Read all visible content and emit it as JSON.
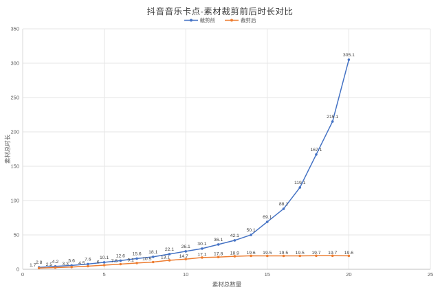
{
  "title": "抖音音乐卡点-素材裁剪前后时长对比",
  "colors": {
    "series_before": "#4472C4",
    "series_after": "#ED7D31",
    "gridline": "#E6E6E6",
    "axis_line": "#BFBFBF",
    "tick_text": "#595959",
    "label_text": "#404040",
    "background": "#FFFFFF"
  },
  "chart_data": {
    "type": "line",
    "title": "抖音音乐卡点-素材裁剪前后时长对比",
    "xlabel": "素材总数量",
    "ylabel": "素材总时长",
    "xlim": [
      0,
      25
    ],
    "ylim": [
      0,
      350
    ],
    "xticks": [
      0,
      5,
      10,
      15,
      20,
      25
    ],
    "yticks": [
      0,
      50,
      100,
      150,
      200,
      250,
      300,
      350
    ],
    "grid": true,
    "legend_position": "top",
    "x": [
      1,
      2,
      3,
      4,
      5,
      6,
      7,
      8,
      9,
      10,
      11,
      12,
      13,
      14,
      15,
      16,
      17,
      18,
      19,
      20
    ],
    "series": [
      {
        "name": "裁剪前",
        "color": "#4472C4",
        "values": [
          2.8,
          4.2,
          5.6,
          7.6,
          10.1,
          12.6,
          15.6,
          18.1,
          22.1,
          26.1,
          30.1,
          36.1,
          42.1,
          50.1,
          69.1,
          88.1,
          119.1,
          167.1,
          215.1,
          305.1
        ],
        "labels": [
          "2.8",
          "4.2",
          "5.6",
          "7.6",
          "10.1",
          "12.6",
          "15.6",
          "18.1",
          "22.1",
          "26.1",
          "30.1",
          "36.1",
          "42.1",
          "50.1",
          "69.1",
          "88.1",
          "119.1",
          "167.1",
          "215.1",
          "305.1"
        ]
      },
      {
        "name": "裁剪后",
        "color": "#ED7D31",
        "values": [
          1.7,
          2.5,
          3.3,
          4.5,
          6,
          7.5,
          9.1,
          10.5,
          13.1,
          14.7,
          17.1,
          17.8,
          18.9,
          19.6,
          19.5,
          19.5,
          19.5,
          19.7,
          19.7,
          19.6
        ],
        "labels": [
          "1.7",
          "2.5",
          "3.3",
          "4.5",
          "6",
          "7.5",
          "9.1",
          "10.5",
          "13.1",
          "14.7",
          "17.1",
          "17.8",
          "18.9",
          "19.6",
          "19.5",
          "19.5",
          "19.5",
          "19.7",
          "19.7",
          "19.6"
        ]
      }
    ]
  }
}
